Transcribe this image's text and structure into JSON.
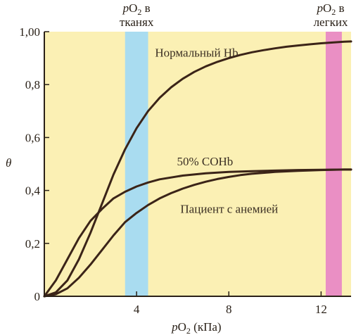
{
  "chart_data": {
    "type": "line",
    "xlabel_prefix": "p",
    "xlabel_main": "O",
    "xlabel_sub": "2",
    "xlabel_unit": " (кПа)",
    "ylabel": "θ",
    "xlim": [
      0,
      13.3
    ],
    "ylim": [
      0,
      1.0
    ],
    "x_ticks": [
      4,
      8,
      12
    ],
    "x_tick_labels": [
      "4",
      "8",
      "12"
    ],
    "y_ticks": [
      0,
      0.2,
      0.4,
      0.6,
      0.8,
      1.0
    ],
    "y_tick_labels": [
      "0",
      "0,2",
      "0,4",
      "0,6",
      "0,8",
      "1,00"
    ],
    "colors": {
      "plot_bg": "#fbf0b4",
      "tissue_band": "#a9dcf0",
      "lung_band": "#ea8fc4",
      "curve": "#3b2418",
      "axis": "#2a2118"
    },
    "bands": [
      {
        "id": "tissues",
        "x_range": [
          3.5,
          4.5
        ],
        "label_line1_prefix": "p",
        "label_line1_main": "O",
        "label_line1_sub": "2",
        "label_line1_suffix": " в",
        "label_line2": "тканях"
      },
      {
        "id": "lungs",
        "x_range": [
          12.2,
          12.9
        ],
        "label_line1_prefix": "p",
        "label_line1_main": "O",
        "label_line1_sub": "2",
        "label_line1_suffix": " в",
        "label_line2": "легких"
      }
    ],
    "series": [
      {
        "name": "Нормальный Hb",
        "label_anchor_x": 4.8,
        "label_anchor_y": 0.905,
        "x": [
          0,
          0.5,
          1,
          1.5,
          2,
          2.5,
          3,
          3.5,
          4,
          4.5,
          5,
          5.5,
          6,
          6.5,
          7,
          7.5,
          8,
          8.5,
          9,
          9.5,
          10,
          10.5,
          11,
          11.5,
          12,
          12.5,
          13,
          13.3
        ],
        "y": [
          0,
          0.015,
          0.06,
          0.14,
          0.24,
          0.35,
          0.46,
          0.555,
          0.635,
          0.7,
          0.75,
          0.79,
          0.822,
          0.848,
          0.869,
          0.886,
          0.9,
          0.912,
          0.922,
          0.93,
          0.937,
          0.943,
          0.948,
          0.952,
          0.956,
          0.959,
          0.962,
          0.963
        ]
      },
      {
        "name": "50% COHb",
        "label_anchor_x": 5.75,
        "label_anchor_y": 0.495,
        "x": [
          0,
          0.5,
          1,
          1.5,
          2,
          2.5,
          3,
          3.5,
          4,
          4.5,
          5,
          6,
          7,
          8,
          9,
          10,
          11,
          12,
          13,
          13.3
        ],
        "y": [
          0,
          0.06,
          0.14,
          0.22,
          0.285,
          0.33,
          0.37,
          0.395,
          0.415,
          0.43,
          0.442,
          0.456,
          0.465,
          0.47,
          0.473,
          0.475,
          0.477,
          0.478,
          0.479,
          0.479
        ]
      },
      {
        "name": "Пациент с анемией",
        "label_anchor_x": 5.9,
        "label_anchor_y": 0.315,
        "x": [
          0,
          0.5,
          1,
          1.5,
          2,
          2.5,
          3,
          3.5,
          4,
          4.5,
          5,
          5.5,
          6,
          6.5,
          7,
          7.5,
          8,
          8.5,
          9,
          10,
          11,
          12,
          13,
          13.3
        ],
        "y": [
          0,
          0.008,
          0.03,
          0.07,
          0.12,
          0.175,
          0.23,
          0.28,
          0.315,
          0.345,
          0.37,
          0.39,
          0.407,
          0.421,
          0.433,
          0.443,
          0.451,
          0.458,
          0.463,
          0.47,
          0.474,
          0.477,
          0.479,
          0.479
        ]
      }
    ]
  }
}
